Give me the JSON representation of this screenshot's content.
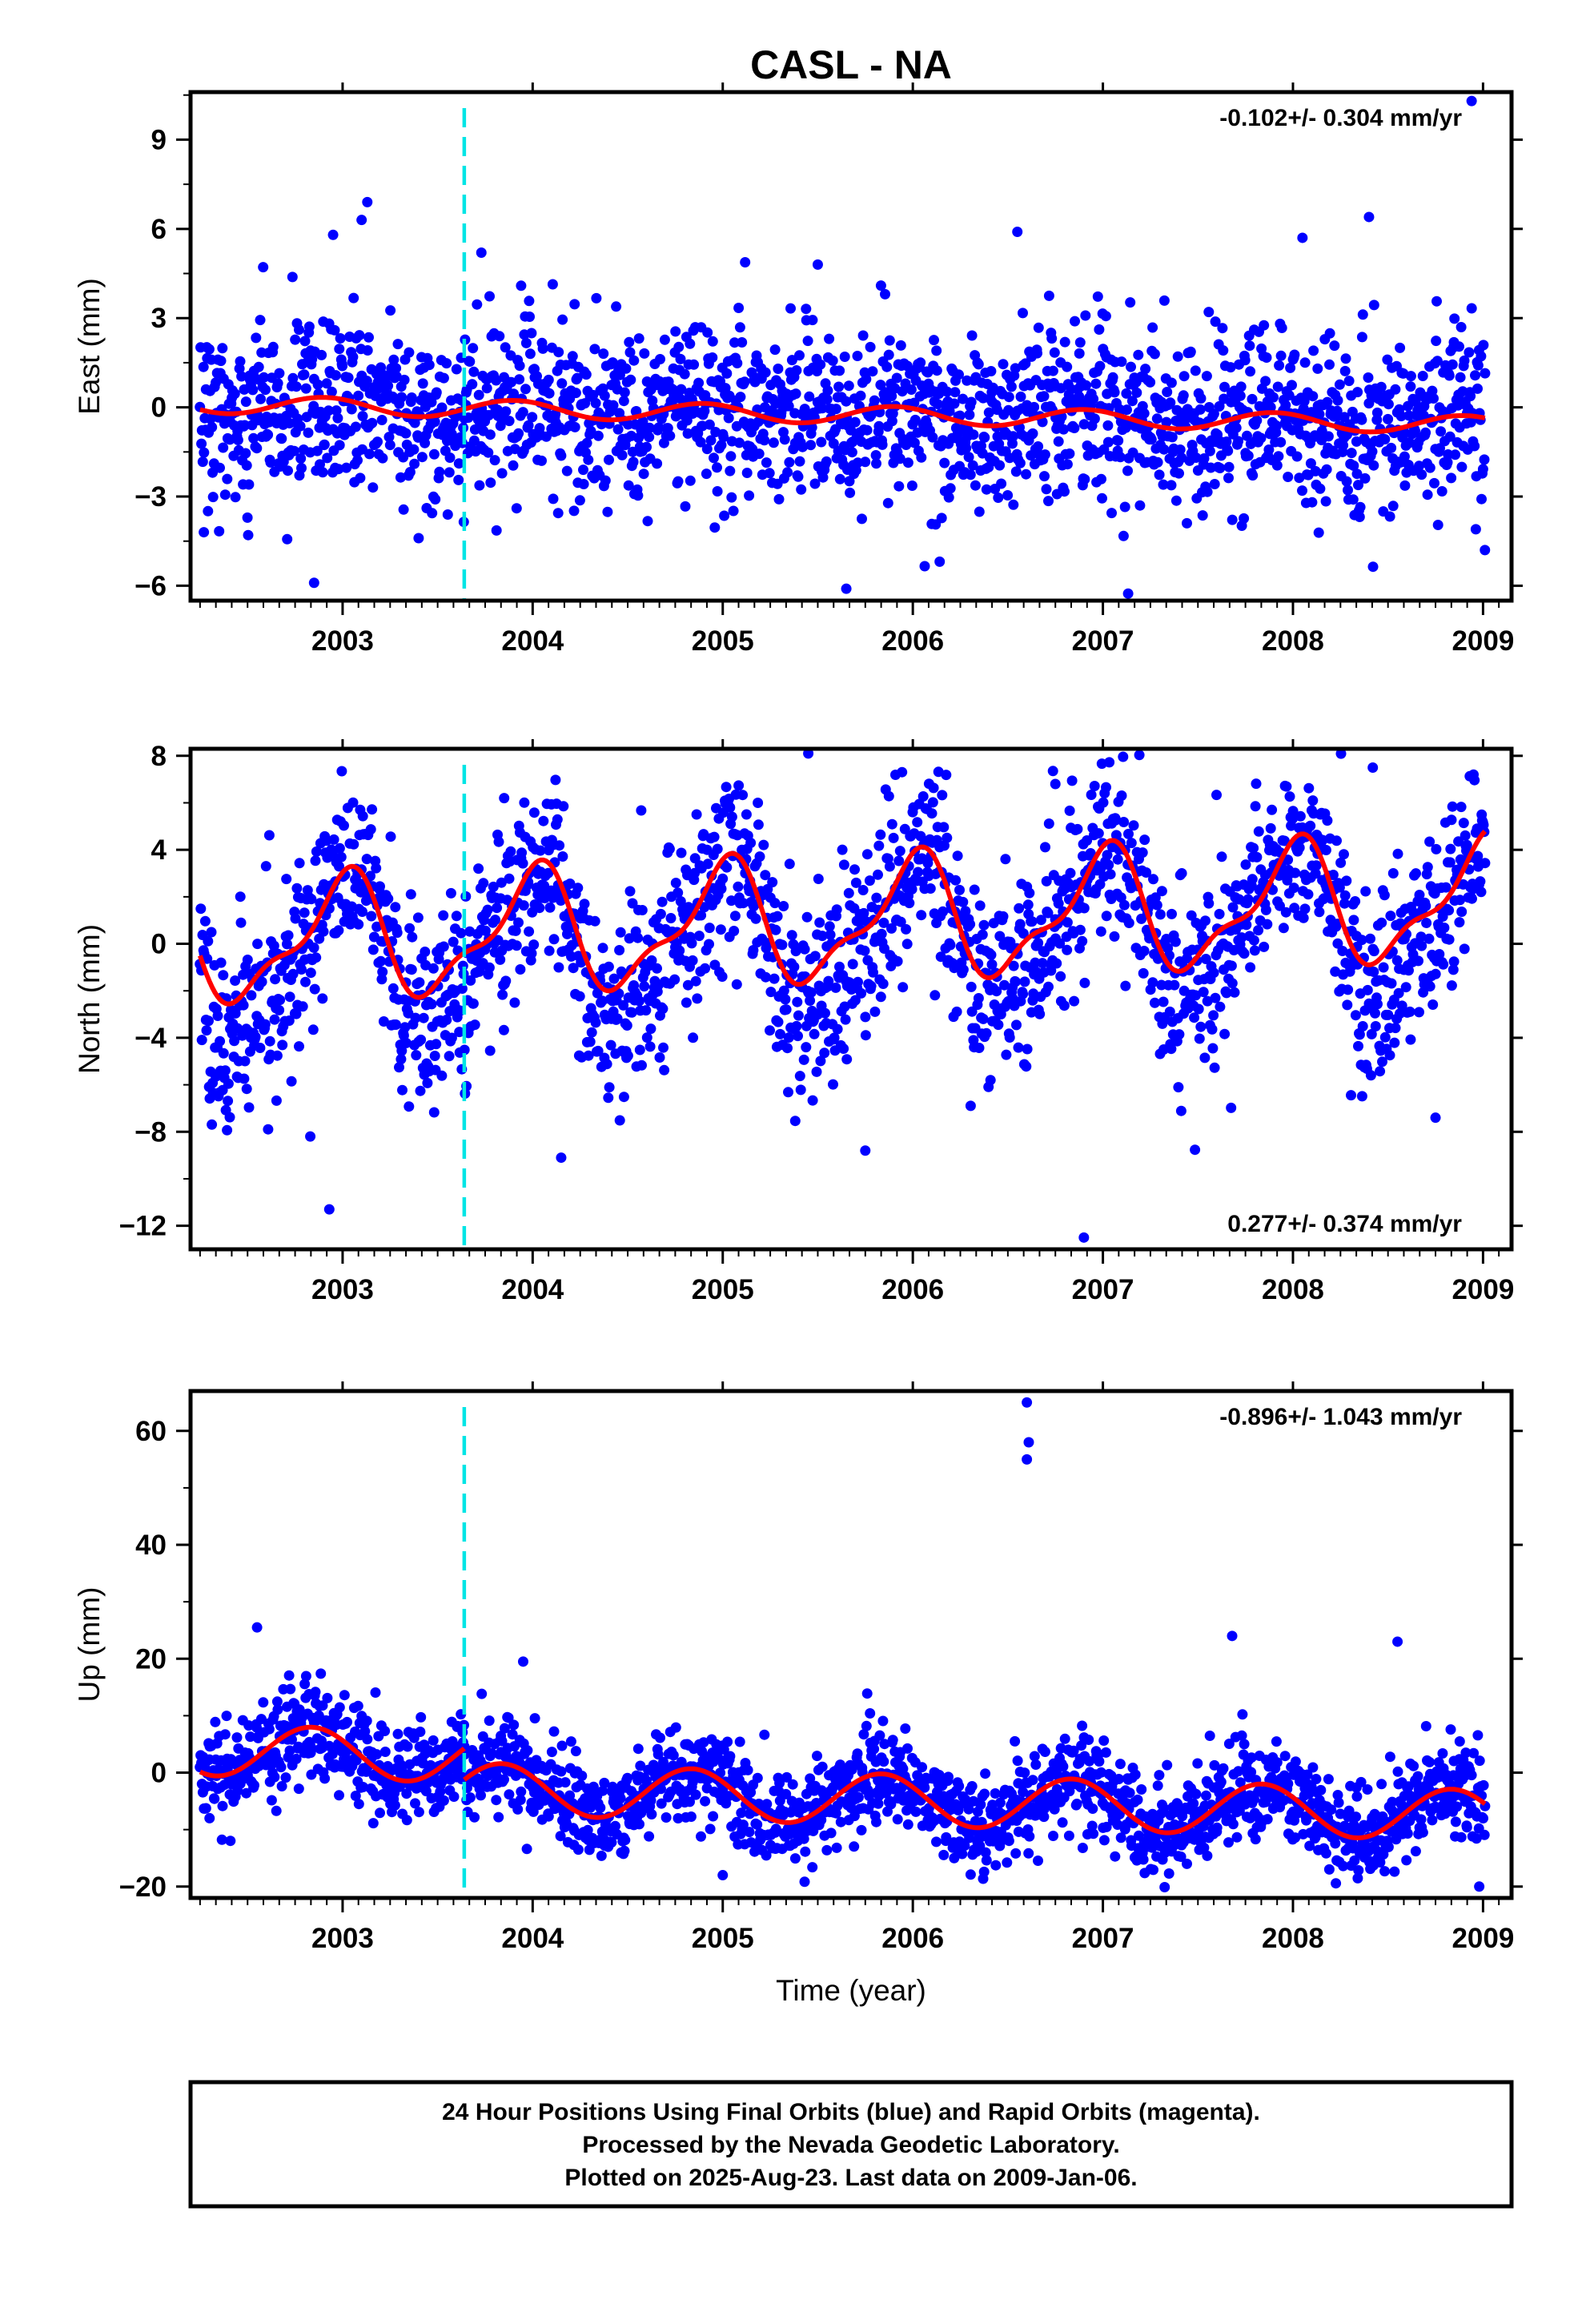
{
  "chart_data": {
    "type": "scatter",
    "title": "CASL - NA",
    "xlabel": "Time (year)",
    "xlim": [
      2002.2,
      2009.15
    ],
    "x_ticks": [
      "2003",
      "2004",
      "2005",
      "2006",
      "2007",
      "2008",
      "2009"
    ],
    "data_start": 2002.25,
    "data_end": 2009.01,
    "antenna_change_year": 2003.64,
    "legend_box": "bottom",
    "colors": {
      "final_orbits": "#0000ff",
      "model_fit": "#ff0000",
      "offset_line": "#00e5e5"
    },
    "panels": [
      {
        "ylabel": "East (mm)",
        "ylim": [
          -6.5,
          10.6
        ],
        "y_ticks": [
          "9",
          "6",
          "3",
          "0",
          "-3",
          "-6"
        ],
        "rate_label": "-0.102+/- 0.304 mm/yr",
        "rate_position": "top-right",
        "point_count": 1950,
        "noise_sd": 1.45,
        "trend_mm_yr": -0.102,
        "fit": {
          "base": 0.1,
          "amp": 0.3,
          "phase": 2.2,
          "offset": 0.0
        },
        "outliers": [
          {
            "x": 2003.13,
            "y": 6.9
          },
          {
            "x": 2003.1,
            "y": 6.3
          },
          {
            "x": 2002.95,
            "y": 5.8
          },
          {
            "x": 2002.85,
            "y": -5.9
          },
          {
            "x": 2005.65,
            "y": -6.1
          },
          {
            "x": 2008.94,
            "y": 10.3
          },
          {
            "x": 2009.01,
            "y": -4.8
          },
          {
            "x": 2006.55,
            "y": 5.9
          },
          {
            "x": 2008.4,
            "y": 6.4
          },
          {
            "x": 2002.27,
            "y": -4.2
          },
          {
            "x": 2003.4,
            "y": -4.4
          },
          {
            "x": 2003.73,
            "y": 5.2
          },
          {
            "x": 2008.05,
            "y": 5.7
          },
          {
            "x": 2005.5,
            "y": 4.8
          }
        ]
      },
      {
        "ylabel": "North (mm)",
        "ylim": [
          -13.0,
          8.3
        ],
        "y_ticks": [
          "8",
          "4",
          "0",
          "-4",
          "-8",
          "-12"
        ],
        "rate_label": "0.277+/- 0.374 mm/yr",
        "rate_position": "bottom-right",
        "point_count": 1950,
        "noise_sd": 1.9,
        "trend_mm_yr": 0.277,
        "fit": {
          "base": 0.0,
          "amp": 2.4,
          "phase": 1.6,
          "offset": 0.0
        },
        "outliers": [
          {
            "x": 2002.93,
            "y": -11.3
          },
          {
            "x": 2006.9,
            "y": -12.5
          },
          {
            "x": 2005.45,
            "y": 8.1
          },
          {
            "x": 2003.85,
            "y": 6.2
          },
          {
            "x": 2008.95,
            "y": 7.2
          },
          {
            "x": 2006.75,
            "y": 6.8
          },
          {
            "x": 2008.42,
            "y": 7.5
          },
          {
            "x": 2004.15,
            "y": -9.1
          },
          {
            "x": 2005.75,
            "y": -8.8
          },
          {
            "x": 2002.83,
            "y": -8.2
          },
          {
            "x": 2008.75,
            "y": -7.4
          }
        ]
      },
      {
        "ylabel": "Up (mm)",
        "ylim": [
          -22.0,
          67.0
        ],
        "y_ticks": [
          "60",
          "40",
          "20",
          "0",
          "-20"
        ],
        "rate_label": "-0.896+/- 1.043 mm/yr",
        "rate_position": "top-right",
        "point_count": 1950,
        "noise_sd": 4.2,
        "trend_mm_yr": -0.896,
        "fit": {
          "base": 4.0,
          "amp": 4.5,
          "phase": 2.6,
          "offset": -5.5
        },
        "outliers": [
          {
            "x": 2006.6,
            "y": 65.0
          },
          {
            "x": 2006.61,
            "y": 58.0
          },
          {
            "x": 2006.6,
            "y": 55.0
          },
          {
            "x": 2002.55,
            "y": 25.5
          },
          {
            "x": 2007.68,
            "y": 24.0
          },
          {
            "x": 2008.55,
            "y": 23.0
          },
          {
            "x": 2003.95,
            "y": 19.5
          },
          {
            "x": 2008.98,
            "y": -20.0
          },
          {
            "x": 2005.0,
            "y": -18.0
          },
          {
            "x": 2002.3,
            "y": -8.0
          }
        ]
      }
    ]
  },
  "footer": {
    "line1": "24 Hour Positions Using Final Orbits (blue) and Rapid Orbits (magenta).",
    "line2": "Processed by the Nevada Geodetic Laboratory.",
    "line3": "Plotted on 2025-Aug-23. Last data on 2009-Jan-06."
  }
}
